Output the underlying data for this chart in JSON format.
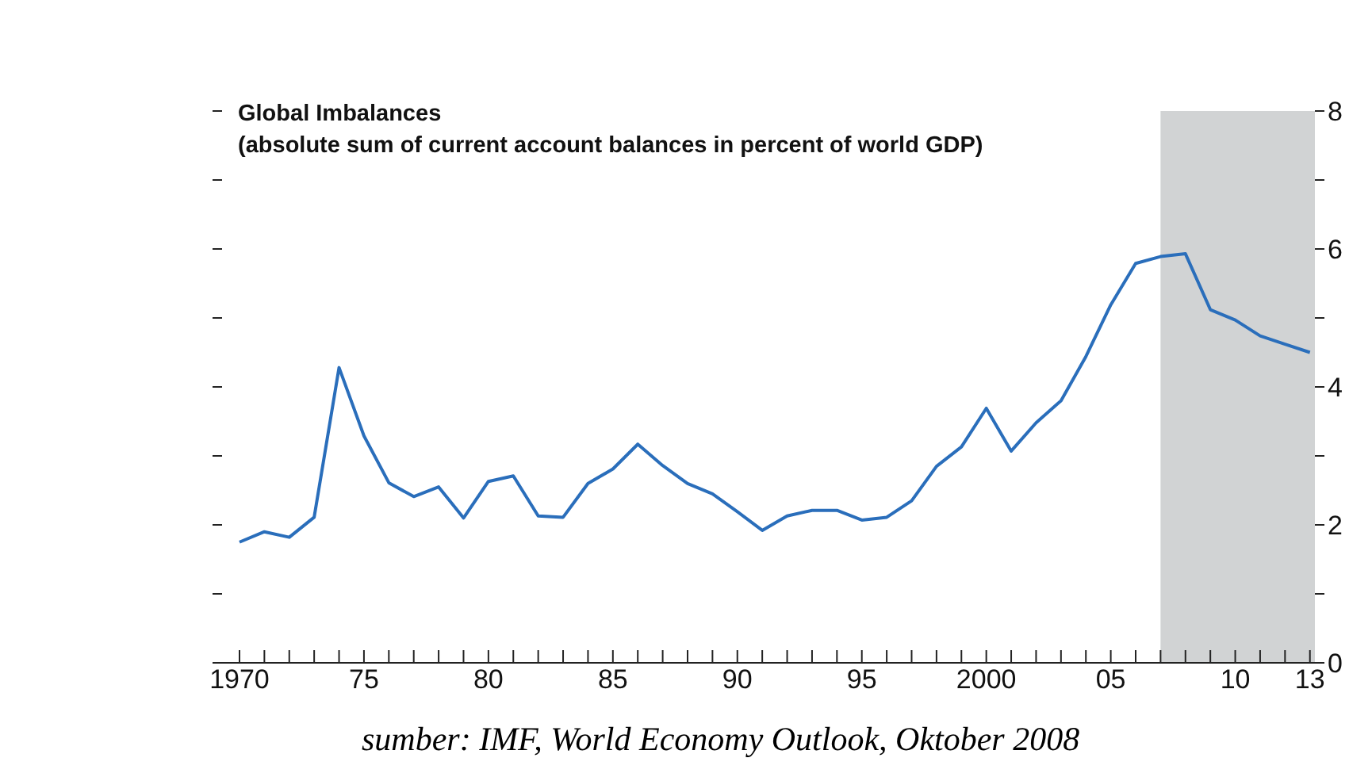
{
  "chart_data": {
    "type": "line",
    "title": "Global Imbalances",
    "subtitle": "(absolute sum of current account balances in percent of world GDP)",
    "x": [
      1970,
      1971,
      1972,
      1973,
      1974,
      1975,
      1976,
      1977,
      1978,
      1979,
      1980,
      1981,
      1982,
      1983,
      1984,
      1985,
      1986,
      1987,
      1988,
      1989,
      1990,
      1991,
      1992,
      1993,
      1994,
      1995,
      1996,
      1997,
      1998,
      1999,
      2000,
      2001,
      2002,
      2003,
      2004,
      2005,
      2006,
      2007,
      2008,
      2009,
      2010,
      2011,
      2012,
      2013
    ],
    "series": [
      {
        "color": "#2a6ebb",
        "values": [
          1.75,
          1.9,
          1.82,
          2.11,
          4.28,
          3.29,
          2.61,
          2.41,
          2.55,
          2.1,
          2.63,
          2.71,
          2.13,
          2.11,
          2.6,
          2.81,
          3.17,
          2.86,
          2.6,
          2.45,
          2.19,
          1.92,
          2.13,
          2.21,
          2.21,
          2.07,
          2.11,
          2.35,
          2.85,
          3.13,
          3.69,
          3.07,
          3.48,
          3.8,
          4.44,
          5.19,
          5.79,
          5.89,
          5.93,
          5.12,
          4.97,
          4.74,
          4.62,
          4.5
        ]
      }
    ],
    "xlim": [
      1969.3,
      2013.2
    ],
    "xticks": [
      1970,
      {
        "value": 1971,
        "label": null
      },
      {
        "value": 1972,
        "label": null
      },
      {
        "value": 1973,
        "label": null
      },
      {
        "value": 1974,
        "label": null
      },
      {
        "value": 1975,
        "label": "75"
      },
      {
        "value": 1976,
        "label": null
      },
      {
        "value": 1977,
        "label": null
      },
      {
        "value": 1978,
        "label": null
      },
      {
        "value": 1979,
        "label": null
      },
      {
        "value": 1980,
        "label": "80"
      },
      {
        "value": 1981,
        "label": null
      },
      {
        "value": 1982,
        "label": null
      },
      {
        "value": 1983,
        "label": null
      },
      {
        "value": 1984,
        "label": null
      },
      {
        "value": 1985,
        "label": "85"
      },
      {
        "value": 1986,
        "label": null
      },
      {
        "value": 1987,
        "label": null
      },
      {
        "value": 1988,
        "label": null
      },
      {
        "value": 1989,
        "label": null
      },
      {
        "value": 1990,
        "label": "90"
      },
      {
        "value": 1991,
        "label": null
      },
      {
        "value": 1992,
        "label": null
      },
      {
        "value": 1993,
        "label": null
      },
      {
        "value": 1994,
        "label": null
      },
      {
        "value": 1995,
        "label": "95"
      },
      {
        "value": 1996,
        "label": null
      },
      {
        "value": 1997,
        "label": null
      },
      {
        "value": 1998,
        "label": null
      },
      {
        "value": 1999,
        "label": null
      },
      2000,
      {
        "value": 2001,
        "label": null
      },
      {
        "value": 2002,
        "label": null
      },
      {
        "value": 2003,
        "label": null
      },
      {
        "value": 2004,
        "label": null
      },
      {
        "value": 2005,
        "label": "05"
      },
      {
        "value": 2006,
        "label": null
      },
      {
        "value": 2007,
        "label": null
      },
      {
        "value": 2008,
        "label": null
      },
      {
        "value": 2009,
        "label": null
      },
      {
        "value": 2010,
        "label": "10"
      },
      {
        "value": 2011,
        "label": null
      },
      {
        "value": 2012,
        "label": null
      },
      {
        "value": 2013,
        "label": "13"
      }
    ],
    "ylim": [
      0,
      8
    ],
    "yticks": [
      0,
      {
        "value": 1,
        "label": null
      },
      2,
      {
        "value": 3,
        "label": null
      },
      4,
      {
        "value": 5,
        "label": null
      },
      6,
      {
        "value": 7,
        "label": null
      },
      8
    ],
    "bands": [
      {
        "axis": "x",
        "from": 2007,
        "to": 2013.2,
        "color": "#d1d3d4"
      }
    ],
    "annotations": [
      "sumber: IMF, World Economy Outlook, Oktober 2008"
    ],
    "marker": "none",
    "line_style": "solid"
  }
}
